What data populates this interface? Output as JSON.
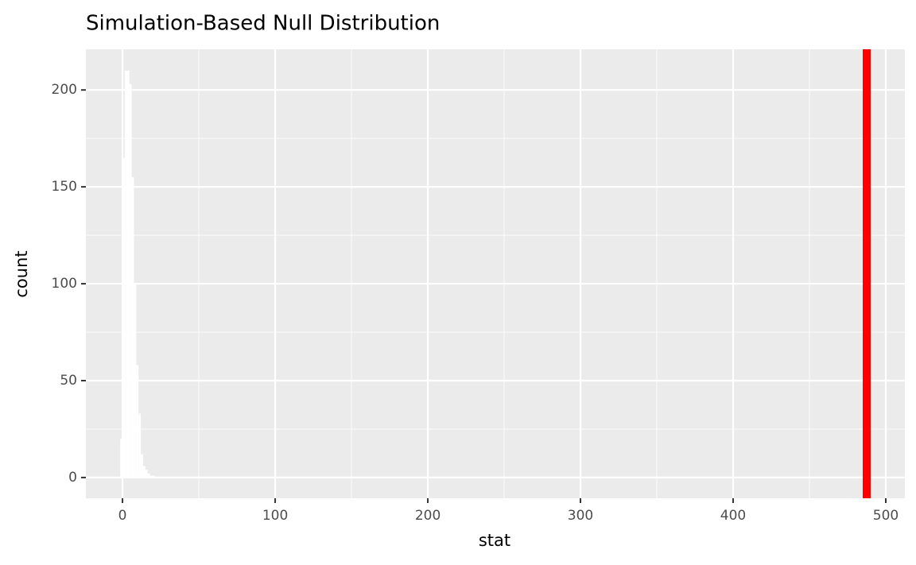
{
  "chart_data": {
    "type": "histogram",
    "title": "Simulation-Based Null Distribution",
    "x_label": "stat",
    "y_label": "count",
    "bins": [
      -1.5,
      0,
      1.5,
      3,
      4.5,
      6,
      7.5,
      9,
      10.5,
      12,
      13.5,
      15,
      16.5,
      18,
      19.5,
      21,
      22.5
    ],
    "values": [
      20,
      165,
      210,
      210,
      203,
      155,
      100,
      58,
      33,
      12,
      6,
      4,
      2,
      1,
      1,
      0
    ],
    "color": "#ffffff",
    "xlim": [
      -24,
      512.5
    ],
    "ylim": [
      -10.7,
      221
    ],
    "xticks": [
      0,
      100,
      200,
      300,
      400,
      500
    ],
    "yticks": [
      0,
      50,
      100,
      150,
      200
    ],
    "xminorticks": [
      50,
      150,
      250,
      350,
      450
    ],
    "yminorticks": [
      25,
      75,
      125,
      175
    ],
    "grid": true,
    "vline": {
      "value": 487.5,
      "color": "#ff0000"
    }
  }
}
